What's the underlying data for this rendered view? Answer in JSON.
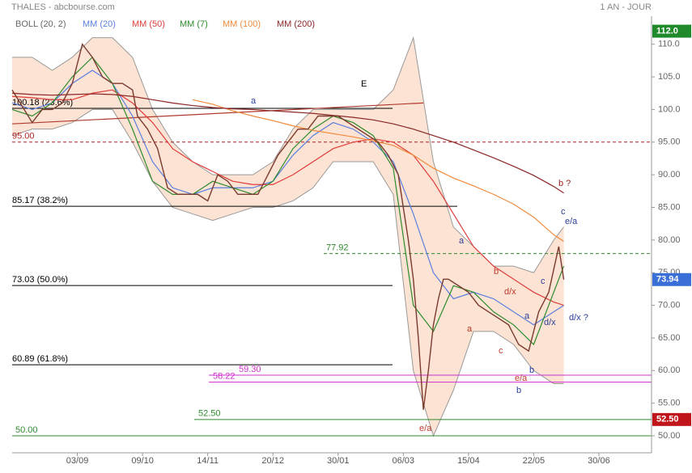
{
  "chart_data": {
    "type": "line",
    "title": "THALES - abcbourse.com",
    "subtitle": "1 AN - JOUR",
    "xlim": [
      0,
      255
    ],
    "xticks": [
      {
        "value": 26,
        "label": "03/09"
      },
      {
        "value": 52,
        "label": "09/10"
      },
      {
        "value": 78,
        "label": "14/11"
      },
      {
        "value": 104,
        "label": "20/12"
      },
      {
        "value": 130,
        "label": "30/01"
      },
      {
        "value": 156,
        "label": "06/03"
      },
      {
        "value": 182,
        "label": "15/04"
      },
      {
        "value": 208,
        "label": "22/05"
      },
      {
        "value": 234,
        "label": "30/06"
      }
    ],
    "ylim": [
      47.4,
      114.3
    ],
    "yticks": [
      {
        "value": 50,
        "label": "50.00"
      },
      {
        "value": 55,
        "label": "55.00"
      },
      {
        "value": 60,
        "label": "60.00"
      },
      {
        "value": 65,
        "label": "65.00"
      },
      {
        "value": 70,
        "label": "70.00"
      },
      {
        "value": 75,
        "label": "75.00"
      },
      {
        "value": 80,
        "label": "80.00"
      },
      {
        "value": 85,
        "label": "85.00"
      },
      {
        "value": 90,
        "label": "90.00"
      },
      {
        "value": 95,
        "label": "95.00"
      },
      {
        "value": 100,
        "label": "100.0"
      },
      {
        "value": 105,
        "label": "105.0"
      },
      {
        "value": 110,
        "label": "110.0"
      }
    ],
    "price": {
      "color": "#7a3b2e",
      "x": [
        0,
        8,
        12,
        16,
        20,
        24,
        28,
        32,
        36,
        40,
        44,
        48,
        50,
        54,
        58,
        62,
        66,
        70,
        74,
        78,
        82,
        86,
        90,
        94,
        98,
        102,
        106,
        110,
        114,
        118,
        122,
        126,
        130,
        134,
        138,
        142,
        146,
        150,
        154,
        156,
        158,
        160,
        162,
        164,
        166,
        168,
        170,
        172,
        174,
        178,
        182,
        186,
        190,
        194,
        198,
        202,
        206,
        210,
        214,
        218,
        220
      ],
      "values": [
        103,
        98,
        100,
        100,
        101,
        104,
        110,
        108,
        105,
        104,
        104,
        103,
        99,
        97,
        94,
        88,
        87,
        87,
        87,
        86,
        90,
        89,
        87,
        87,
        87,
        90,
        93,
        95,
        97,
        97,
        99,
        99,
        99,
        98,
        97,
        96,
        95,
        93,
        90,
        85,
        80,
        74,
        65,
        54,
        60,
        67,
        71,
        74,
        74,
        73,
        72,
        70,
        69,
        68,
        67,
        64,
        63,
        69,
        72,
        79,
        73.94
      ]
    },
    "ma_x": [
      0,
      8,
      16,
      24,
      32,
      40,
      48,
      56,
      64,
      72,
      80,
      88,
      96,
      104,
      112,
      120,
      128,
      136,
      144,
      152,
      160,
      168,
      176,
      184,
      192,
      200,
      208,
      216,
      220
    ],
    "bands": {
      "name": "BOLL (20, 2)",
      "color": "#fde3d3",
      "line_color": "#999999",
      "upper": [
        108,
        108,
        106,
        108,
        111,
        111,
        108,
        100,
        95,
        92,
        90,
        90,
        90,
        92,
        97,
        100,
        100,
        100,
        100,
        103,
        111,
        92,
        82,
        79,
        76,
        76,
        75,
        80,
        82
      ],
      "lower": [
        96,
        97,
        97,
        98,
        100,
        100,
        95,
        89,
        85,
        84,
        83,
        84,
        85,
        85,
        86,
        88,
        92,
        92,
        92,
        87,
        60,
        50,
        57,
        66,
        66,
        64,
        60,
        58,
        58
      ]
    },
    "series": [
      {
        "name": "MM (20)",
        "color": "#5b7fe0",
        "values": [
          101,
          100,
          101,
          104,
          106,
          104,
          99,
          92,
          88,
          87,
          88,
          88,
          88,
          89,
          93,
          96,
          98,
          97,
          95,
          92,
          84,
          75,
          71,
          72,
          71,
          69,
          67,
          69,
          70
        ]
      },
      {
        "name": "MM (50)",
        "color": "#e03c3c",
        "values": [
          102,
          101.8,
          101.5,
          101.5,
          102.5,
          103,
          101,
          98,
          94,
          92,
          90.5,
          89,
          88.5,
          88.5,
          90,
          92,
          94,
          95,
          95.5,
          95,
          93,
          89,
          84,
          79,
          76,
          74,
          72,
          70.5,
          70
        ]
      },
      {
        "name": "MM (7)",
        "color": "#2e8b2e",
        "values": [
          100,
          99,
          101,
          105,
          108,
          104,
          97,
          89,
          87,
          87,
          89,
          88,
          87,
          89,
          94,
          97,
          99,
          98,
          96,
          91,
          70,
          66,
          73,
          72,
          69,
          67,
          64,
          72,
          76
        ]
      },
      {
        "name": "MM (100)",
        "color": "#f08a3c",
        "values": [
          null,
          null,
          null,
          null,
          null,
          null,
          null,
          null,
          null,
          101.5,
          100.8,
          99.8,
          99,
          98.3,
          97.5,
          96.8,
          96.3,
          95.8,
          95.2,
          94.5,
          93,
          91,
          89.5,
          88.3,
          87,
          85.5,
          83.5,
          80.8,
          79.8
        ]
      },
      {
        "name": "MM (200)",
        "color": "#8b2525",
        "values": [
          102.5,
          102.3,
          102.2,
          102.3,
          102.4,
          102.3,
          102,
          101.5,
          101,
          100.6,
          100.3,
          100.1,
          100,
          99.8,
          99.6,
          99.4,
          99.1,
          98.8,
          98.4,
          97.8,
          97,
          96,
          95,
          93.8,
          92.6,
          91.3,
          89.9,
          88.2,
          87.2
        ]
      }
    ],
    "trendline": {
      "color": "#b03a2e",
      "x": [
        0,
        164
      ],
      "values": [
        97.8,
        101
      ]
    },
    "levels": [
      {
        "label": "100.18 (23.6%)",
        "value": 100.18,
        "color": "#000000",
        "dashed": false
      },
      {
        "label": "95.00",
        "value": 95,
        "color": "#b22222",
        "dashed": true
      },
      {
        "label": "85.17 (38.2%)",
        "value": 85.17,
        "color": "#000000",
        "dashed": false
      },
      {
        "label": "77.92",
        "value": 77.92,
        "color": "#2e8b2e",
        "dashed": true
      },
      {
        "label": "73.03 (50.0%)",
        "value": 73.03,
        "color": "#000000",
        "dashed": false
      },
      {
        "label": "60.89 (61.8%)",
        "value": 60.89,
        "color": "#000000",
        "dashed": false
      },
      {
        "label": "59.30",
        "value": 59.3,
        "color": "#d12fd1",
        "dashed": false
      },
      {
        "label": "58.22",
        "value": 58.22,
        "color": "#d12fd1",
        "dashed": false
      },
      {
        "label": "52.50",
        "value": 52.5,
        "color": "#2e8b2e",
        "dashed": false
      },
      {
        "label": "50.00",
        "value": 50,
        "color": "#2e8b2e",
        "dashed": false
      }
    ],
    "badges": [
      {
        "value": 112,
        "label": "112.0",
        "color": "#1f8a2a"
      },
      {
        "value": 73.94,
        "label": "73.94",
        "color": "#3a6fd8"
      },
      {
        "value": 52.5,
        "label": "52.50",
        "color": "#c0161b"
      }
    ],
    "annotations": [
      {
        "text": "E",
        "color": "#000000"
      },
      {
        "text": "a",
        "color": "#2a3d9a"
      },
      {
        "text": "b ?",
        "color": "#9b1c1c"
      },
      {
        "text": "c",
        "color": "#2a3d9a"
      },
      {
        "text": "e/a",
        "color": "#2a3d9a"
      },
      {
        "text": "d/x ?",
        "color": "#2a3d9a"
      },
      {
        "text": "a",
        "color": "#2a3d9a"
      },
      {
        "text": "a",
        "color": "#c0392b"
      },
      {
        "text": "b",
        "color": "#c0392b"
      },
      {
        "text": "d/x",
        "color": "#c0392b"
      },
      {
        "text": "c",
        "color": "#c0392b"
      },
      {
        "text": "a",
        "color": "#2a3d9a"
      },
      {
        "text": "c",
        "color": "#2a3d9a"
      },
      {
        "text": "d/x",
        "color": "#2a3d9a"
      },
      {
        "text": "b",
        "color": "#2a3d9a"
      },
      {
        "text": "e/a",
        "color": "#c0392b"
      },
      {
        "text": "b",
        "color": "#2a3d9a"
      },
      {
        "text": "e/a",
        "color": "#c0392b"
      }
    ]
  }
}
